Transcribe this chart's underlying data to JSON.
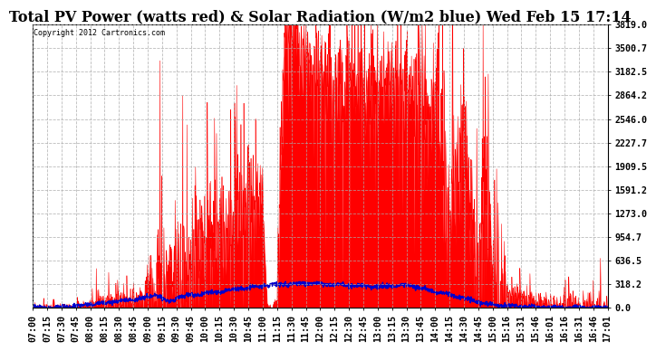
{
  "title": "Total PV Power (watts red) & Solar Radiation (W/m2 blue) Wed Feb 15 17:14",
  "copyright": "Copyright 2012 Cartronics.com",
  "ylabel_right_ticks": [
    0.0,
    318.2,
    636.5,
    954.7,
    1273.0,
    1591.2,
    1909.5,
    2227.7,
    2546.0,
    2864.2,
    3182.5,
    3500.7,
    3819.0
  ],
  "y_max": 3819.0,
  "y_min": 0.0,
  "bg_color": "#ffffff",
  "plot_bg_color": "#ffffff",
  "grid_color": "#aaaaaa",
  "red_color": "#ff0000",
  "blue_color": "#0000cc",
  "title_fontsize": 11.5,
  "tick_fontsize": 7.2,
  "x_labels": [
    "07:00",
    "07:15",
    "07:30",
    "07:45",
    "08:00",
    "08:15",
    "08:30",
    "08:45",
    "09:00",
    "09:15",
    "09:30",
    "09:45",
    "10:00",
    "10:15",
    "10:30",
    "10:45",
    "11:00",
    "11:15",
    "11:30",
    "11:45",
    "12:00",
    "12:15",
    "12:30",
    "12:45",
    "13:00",
    "13:15",
    "13:30",
    "13:45",
    "14:00",
    "14:15",
    "14:30",
    "14:45",
    "15:00",
    "15:16",
    "15:31",
    "15:46",
    "16:01",
    "16:16",
    "16:31",
    "16:46",
    "17:01"
  ]
}
